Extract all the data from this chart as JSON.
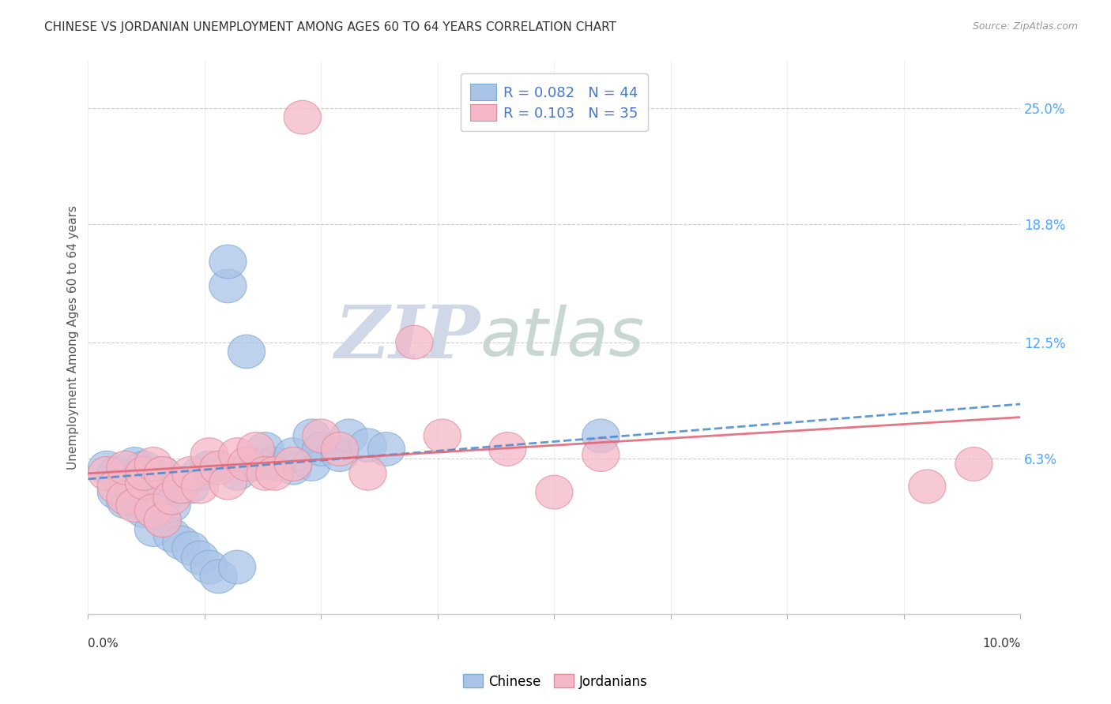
{
  "title": "CHINESE VS JORDANIAN UNEMPLOYMENT AMONG AGES 60 TO 64 YEARS CORRELATION CHART",
  "source": "Source: ZipAtlas.com",
  "ylabel": "Unemployment Among Ages 60 to 64 years",
  "ytick_labels": [
    "6.3%",
    "12.5%",
    "18.8%",
    "25.0%"
  ],
  "ytick_values": [
    0.063,
    0.125,
    0.188,
    0.25
  ],
  "xlim": [
    0.0,
    0.1
  ],
  "ylim": [
    -0.02,
    0.275
  ],
  "legend_entries": [
    {
      "label": "R = 0.082   N = 44",
      "color": "#aac4e8"
    },
    {
      "label": "R = 0.103   N = 35",
      "color": "#f4b8c8"
    }
  ],
  "legend_bottom": [
    "Chinese",
    "Jordanians"
  ],
  "chinese_color": "#aac4e8",
  "chinese_edge": "#7aaad4",
  "jordanian_color": "#f4b8c8",
  "jordanian_edge": "#e08898",
  "chinese_line_color": "#4488cc",
  "jordanian_line_color": "#e06878",
  "chinese_scatter_x": [
    0.002,
    0.003,
    0.003,
    0.004,
    0.004,
    0.005,
    0.005,
    0.005,
    0.006,
    0.006,
    0.007,
    0.007,
    0.008,
    0.008,
    0.008,
    0.009,
    0.009,
    0.01,
    0.01,
    0.011,
    0.011,
    0.012,
    0.012,
    0.013,
    0.013,
    0.014,
    0.015,
    0.015,
    0.016,
    0.016,
    0.017,
    0.018,
    0.019,
    0.02,
    0.022,
    0.022,
    0.024,
    0.024,
    0.025,
    0.027,
    0.028,
    0.03,
    0.032,
    0.055
  ],
  "chinese_scatter_y": [
    0.058,
    0.045,
    0.055,
    0.04,
    0.05,
    0.042,
    0.048,
    0.06,
    0.035,
    0.058,
    0.025,
    0.052,
    0.03,
    0.042,
    0.055,
    0.022,
    0.038,
    0.018,
    0.05,
    0.015,
    0.048,
    0.01,
    0.055,
    0.005,
    0.058,
    0.0,
    0.155,
    0.168,
    0.005,
    0.055,
    0.12,
    0.06,
    0.068,
    0.06,
    0.058,
    0.065,
    0.06,
    0.075,
    0.068,
    0.065,
    0.075,
    0.07,
    0.068,
    0.075
  ],
  "jordanian_scatter_x": [
    0.002,
    0.003,
    0.004,
    0.004,
    0.005,
    0.006,
    0.006,
    0.007,
    0.007,
    0.008,
    0.008,
    0.009,
    0.01,
    0.011,
    0.012,
    0.013,
    0.014,
    0.015,
    0.016,
    0.017,
    0.018,
    0.019,
    0.02,
    0.022,
    0.023,
    0.025,
    0.027,
    0.03,
    0.035,
    0.038,
    0.045,
    0.05,
    0.055,
    0.09,
    0.095
  ],
  "jordanian_scatter_y": [
    0.055,
    0.048,
    0.042,
    0.058,
    0.038,
    0.05,
    0.055,
    0.035,
    0.06,
    0.03,
    0.055,
    0.042,
    0.048,
    0.055,
    0.048,
    0.065,
    0.058,
    0.05,
    0.065,
    0.06,
    0.068,
    0.055,
    0.055,
    0.06,
    0.245,
    0.075,
    0.068,
    0.055,
    0.125,
    0.075,
    0.068,
    0.045,
    0.065,
    0.048,
    0.06
  ],
  "r_chinese": 0.082,
  "n_chinese": 44,
  "r_jordanian": 0.103,
  "n_jordanian": 35,
  "background_color": "#ffffff",
  "grid_color": "#cccccc",
  "title_color": "#333333",
  "axis_label_color": "#555555",
  "ytick_color": "#4da6ff",
  "watermark_zip_color": "#d0d8e8",
  "watermark_atlas_color": "#c8d8d0"
}
